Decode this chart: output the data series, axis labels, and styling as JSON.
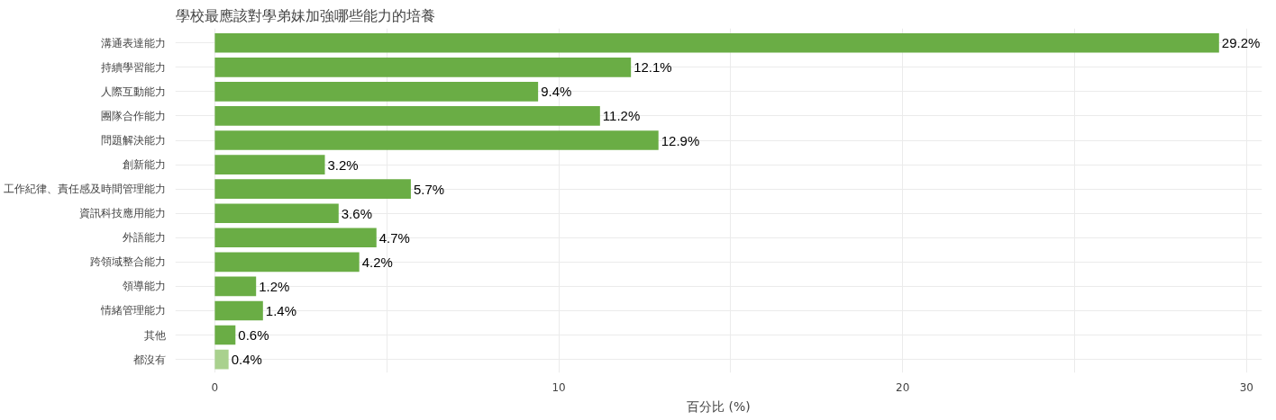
{
  "chart_data": {
    "type": "bar",
    "orientation": "horizontal",
    "title": "學校最應該對學弟妹加強哪些能力的培養",
    "xlabel": "百分比 (%)",
    "categories": [
      "溝通表達能力",
      "持續學習能力",
      "人際互動能力",
      "團隊合作能力",
      "問題解決能力",
      "創新能力",
      "工作紀律、責任感及時間管理能力",
      "資訊科技應用能力",
      "外語能力",
      "跨領域整合能力",
      "領導能力",
      "情緒管理能力",
      "其他",
      "都沒有"
    ],
    "values": [
      29.2,
      12.1,
      9.4,
      11.2,
      12.9,
      3.2,
      5.7,
      3.6,
      4.7,
      4.2,
      1.2,
      1.4,
      0.6,
      0.4
    ],
    "value_labels": [
      "29.2%",
      "12.1%",
      "9.4%",
      "11.2%",
      "12.9%",
      "3.2%",
      "5.7%",
      "3.6%",
      "4.7%",
      "4.2%",
      "1.2%",
      "1.4%",
      "0.6%",
      "0.4%"
    ],
    "colors": [
      "#6aad45",
      "#6aad45",
      "#6aad45",
      "#6aad45",
      "#6aad45",
      "#6aad45",
      "#6aad45",
      "#6aad45",
      "#6aad45",
      "#6aad45",
      "#6aad45",
      "#6aad45",
      "#6aad45",
      "#a9d18e"
    ],
    "xlim": [
      -1.15,
      30.45
    ],
    "xticks": [
      0,
      {
        "value": 5,
        "label": null
      },
      10,
      {
        "value": 15,
        "label": null
      },
      20,
      {
        "value": 25,
        "label": null
      },
      30
    ],
    "grid": true
  }
}
